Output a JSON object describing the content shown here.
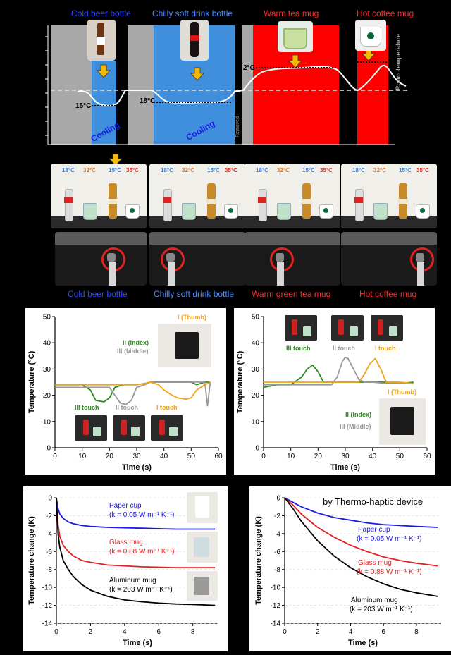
{
  "top_panel": {
    "object_labels": [
      "Cold beer bottle",
      "Chilly soft drink bottle",
      "Warm tea mug",
      "Hot coffee mug"
    ],
    "annotations": {
      "beer_temp": "15°C",
      "drink_temp": "18°C",
      "tea_temp": "2°C",
      "cooling_1": "Cooling",
      "cooling_2": "Cooling",
      "room_label": "Room temperature",
      "removed": "Removed"
    },
    "colors": {
      "cold": "#3f8fdc",
      "warm": "#ff0000",
      "gray": "#a8a8a8"
    }
  },
  "photo_panel": {
    "temps": [
      {
        "t1": "18°C",
        "t2": "32°C",
        "t3": "15°C",
        "t4": "35°C"
      },
      {
        "t1": "18°C",
        "t2": "32°C",
        "t3": "15°C",
        "t4": "35°C"
      },
      {
        "t1": "18°C",
        "t2": "32°C",
        "t3": "15°C",
        "t4": "35°C"
      },
      {
        "t1": "18°C",
        "t2": "32°C",
        "t3": "15°C",
        "t4": "35°C"
      }
    ],
    "captions": [
      "Cold beer bottle",
      "Chilly soft drink bottle",
      "Warm green tea mug",
      "Hot coffee mug"
    ]
  },
  "chart_data": [
    {
      "type": "line",
      "xlabel": "Time (s)",
      "ylabel": "Temperature (°C)",
      "xlim": [
        0,
        60
      ],
      "ylim": [
        0,
        50
      ],
      "xticks": [
        0,
        10,
        20,
        30,
        40,
        50,
        60
      ],
      "yticks": [
        0,
        10,
        20,
        30,
        40,
        50
      ],
      "series": [
        {
          "name": "II (Index)",
          "color": "#2a8a1c",
          "x": [
            0,
            5,
            10,
            13,
            15,
            18,
            20,
            22,
            25,
            28,
            30,
            33,
            35,
            40,
            45,
            50,
            52,
            55,
            57
          ],
          "y": [
            24,
            24,
            24,
            22,
            18,
            17.5,
            19,
            23,
            24,
            24,
            24,
            24.5,
            25,
            25,
            25,
            25,
            24,
            25,
            25
          ]
        },
        {
          "name": "III (Middle)",
          "color": "#999999",
          "x": [
            0,
            5,
            10,
            15,
            18,
            20,
            22,
            24,
            26,
            28,
            30,
            33,
            35,
            40,
            45,
            50,
            55,
            56,
            57
          ],
          "y": [
            23,
            23,
            23,
            23,
            23,
            23,
            20,
            17,
            16.5,
            18,
            23,
            24,
            25,
            25,
            25,
            25,
            25,
            16,
            25
          ]
        },
        {
          "name": "I (Thumb)",
          "color": "#f2a316",
          "x": [
            0,
            5,
            10,
            15,
            20,
            25,
            30,
            33,
            35,
            38,
            40,
            43,
            45,
            48,
            50,
            52,
            55,
            57
          ],
          "y": [
            24,
            24,
            24,
            24,
            24,
            24,
            24,
            24.5,
            25,
            24,
            22,
            20,
            19,
            18.5,
            19,
            22,
            24,
            25
          ]
        }
      ],
      "legend": [
        "I (Thumb)",
        "II (Index)",
        "III (Middle)"
      ],
      "annotations": [
        "III touch",
        "II touch",
        "I touch"
      ]
    },
    {
      "type": "line",
      "xlabel": "Time (s)",
      "ylabel": "Temperature (°C)",
      "xlim": [
        0,
        60
      ],
      "ylim": [
        0,
        50
      ],
      "xticks": [
        0,
        10,
        20,
        30,
        40,
        50,
        60
      ],
      "yticks": [
        0,
        10,
        20,
        30,
        40,
        50
      ],
      "series": [
        {
          "name": "II (Index)",
          "color": "#2a8a1c",
          "x": [
            0,
            5,
            10,
            14,
            16,
            18,
            20,
            22,
            25,
            30,
            35,
            40,
            45,
            50,
            55
          ],
          "y": [
            23,
            24,
            24,
            27,
            30,
            31.5,
            29,
            25,
            25,
            25,
            25,
            25,
            25,
            24.5,
            25
          ]
        },
        {
          "name": "III (Middle)",
          "color": "#999999",
          "x": [
            0,
            5,
            10,
            15,
            20,
            25,
            27,
            29,
            30,
            31,
            33,
            35,
            37,
            40,
            45,
            50,
            55
          ],
          "y": [
            24,
            24,
            24,
            24,
            24,
            24,
            27,
            33,
            34.5,
            34,
            30,
            26,
            25,
            25,
            24.5,
            24.5,
            24.5
          ]
        },
        {
          "name": "I (Thumb)",
          "color": "#f2a316",
          "x": [
            0,
            5,
            10,
            15,
            20,
            25,
            30,
            35,
            37,
            39,
            41,
            43,
            45,
            50,
            55
          ],
          "y": [
            25,
            25,
            25,
            25,
            25,
            25,
            25,
            25,
            28,
            32,
            34,
            30,
            25,
            25,
            24.5
          ]
        }
      ],
      "legend": [
        "I (Thumb)",
        "II (Index)",
        "III (Middle)"
      ],
      "annotations": [
        "III touch",
        "II touch",
        "I touch"
      ]
    },
    {
      "type": "line",
      "xlabel": "Time (s)",
      "ylabel": "Temperature change (K)",
      "xlim": [
        0,
        9.5
      ],
      "ylim": [
        -14,
        0
      ],
      "xticks": [
        0,
        2,
        4,
        6,
        8
      ],
      "yticks": [
        0,
        -2,
        -4,
        -6,
        -8,
        -10,
        -12,
        -14
      ],
      "series": [
        {
          "name": "Paper cup",
          "color": "#1a1ae6",
          "x": [
            0,
            0.1,
            0.2,
            0.4,
            0.7,
            1,
            1.5,
            2,
            3,
            4,
            5,
            6,
            7,
            8,
            9.3
          ],
          "y": [
            0,
            -1.2,
            -1.8,
            -2.3,
            -2.7,
            -2.9,
            -3.1,
            -3.2,
            -3.3,
            -3.35,
            -3.4,
            -3.45,
            -3.5,
            -3.5,
            -3.5
          ]
        },
        {
          "name": "Glass mug",
          "color": "#e02020",
          "x": [
            0,
            0.1,
            0.2,
            0.4,
            0.7,
            1,
            1.5,
            2,
            3,
            4,
            5,
            6,
            7,
            8,
            9.3
          ],
          "y": [
            0,
            -3,
            -4.3,
            -5.3,
            -6,
            -6.5,
            -7,
            -7.2,
            -7.5,
            -7.6,
            -7.7,
            -7.75,
            -7.8,
            -7.8,
            -7.8
          ]
        },
        {
          "name": "Aluminum mug",
          "color": "#000000",
          "x": [
            0,
            0.1,
            0.2,
            0.4,
            0.7,
            1,
            1.5,
            2,
            3,
            4,
            5,
            6,
            7,
            8,
            9.3
          ],
          "y": [
            0,
            -4,
            -5.5,
            -7,
            -8,
            -8.8,
            -9.7,
            -10.3,
            -11,
            -11.4,
            -11.6,
            -11.75,
            -11.85,
            -11.9,
            -12
          ]
        }
      ],
      "labels": [
        {
          "name": "Paper cup",
          "k": "(k = 0.05 W m⁻¹ K⁻¹)"
        },
        {
          "name": "Glass mug",
          "k": "(k = 0.88 W m⁻¹ K⁻¹)"
        },
        {
          "name": "Aluminum mug",
          "k": "(k = 203 W m⁻¹ K⁻¹)"
        }
      ]
    },
    {
      "type": "line",
      "title_visible": "by Thermo-haptic device",
      "xlabel": "Time (s)",
      "ylabel": "Temperature change (K)",
      "xlim": [
        0,
        9.5
      ],
      "ylim": [
        -14,
        0
      ],
      "xticks": [
        0,
        2,
        4,
        6,
        8
      ],
      "yticks": [
        0,
        -2,
        -4,
        -6,
        -8,
        -10,
        -12,
        -14
      ],
      "series": [
        {
          "name": "Paper cup",
          "color": "#1a1ae6",
          "x": [
            0,
            0.5,
            1,
            2,
            3,
            4,
            5,
            6,
            7,
            8,
            9.3
          ],
          "y": [
            0,
            -0.5,
            -1.0,
            -1.7,
            -2.2,
            -2.5,
            -2.8,
            -3.0,
            -3.1,
            -3.2,
            -3.3
          ]
        },
        {
          "name": "Glass mug",
          "color": "#e02020",
          "x": [
            0,
            0.5,
            1,
            2,
            3,
            4,
            5,
            6,
            7,
            8,
            9.3
          ],
          "y": [
            0,
            -0.8,
            -1.8,
            -3.3,
            -4.4,
            -5.3,
            -6.0,
            -6.6,
            -7.0,
            -7.3,
            -7.6
          ]
        },
        {
          "name": "Aluminum mug",
          "color": "#000000",
          "x": [
            0,
            0.5,
            1,
            2,
            3,
            4,
            5,
            6,
            7,
            8,
            9.3
          ],
          "y": [
            0,
            -1.2,
            -2.6,
            -4.8,
            -6.5,
            -7.8,
            -8.8,
            -9.6,
            -10.2,
            -10.6,
            -11.0
          ]
        }
      ],
      "labels": [
        {
          "name": "Paper cup",
          "k": "(k = 0.05 W m⁻¹ K⁻¹)"
        },
        {
          "name": "Glass mug",
          "k": "(k = 0.88 W m⁻¹ K⁻¹)"
        },
        {
          "name": "Aluminum mug",
          "k": "(k = 203 W m⁻¹ K⁻¹)"
        }
      ]
    }
  ]
}
